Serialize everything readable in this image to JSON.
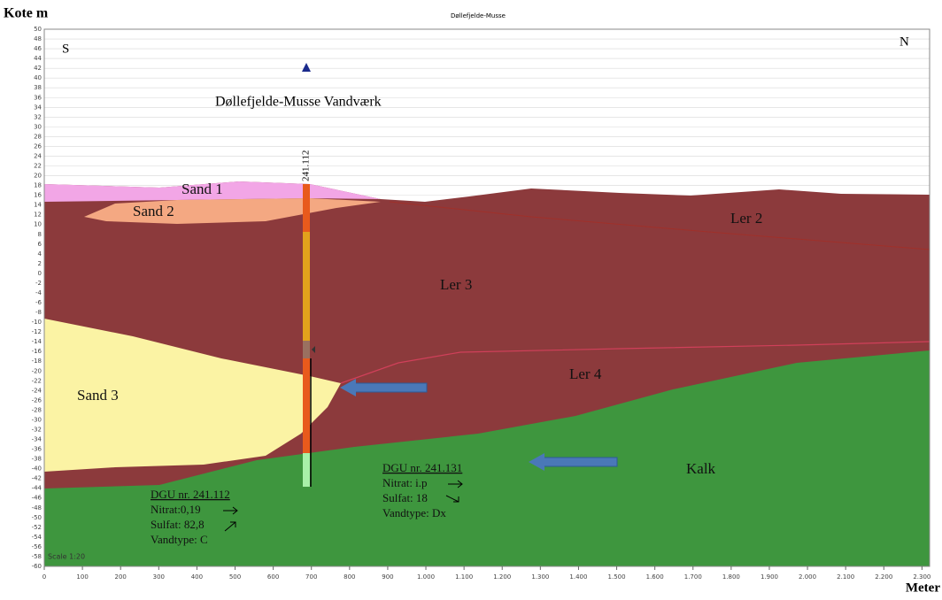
{
  "title": "Døllefjelde-Musse",
  "y_axis": {
    "label": "Kote m",
    "lim": [
      -60,
      50
    ],
    "ticks": [
      -60,
      -58,
      -56,
      -54,
      -52,
      -50,
      -48,
      -46,
      -44,
      -42,
      -40,
      -38,
      -36,
      -34,
      -32,
      -30,
      -28,
      -26,
      -24,
      -22,
      -20,
      -18,
      -16,
      -14,
      -12,
      -10,
      -8,
      -6,
      -4,
      -2,
      0,
      2,
      4,
      6,
      8,
      10,
      12,
      14,
      16,
      18,
      20,
      22,
      24,
      26,
      28,
      30,
      32,
      34,
      36,
      38,
      40,
      42,
      44,
      46,
      48,
      50
    ]
  },
  "x_axis": {
    "label": "Meter",
    "lim": [
      0,
      2320
    ],
    "ticks": [
      0,
      100,
      200,
      300,
      400,
      500,
      600,
      700,
      800,
      900,
      {
        "value": 1000,
        "label": "1.000"
      },
      {
        "value": 1100,
        "label": "1.100"
      },
      {
        "value": 1200,
        "label": "1.200"
      },
      {
        "value": 1300,
        "label": "1.300"
      },
      {
        "value": 1400,
        "label": "1.400"
      },
      {
        "value": 1500,
        "label": "1.500"
      },
      {
        "value": 1600,
        "label": "1.600"
      },
      {
        "value": 1700,
        "label": "1.700"
      },
      {
        "value": 1800,
        "label": "1.800"
      },
      {
        "value": 1900,
        "label": "1.900"
      },
      {
        "value": 2000,
        "label": "2.000"
      },
      {
        "value": 2100,
        "label": "2.100"
      },
      {
        "value": 2200,
        "label": "2.200"
      },
      {
        "value": 2300,
        "label": "2.300"
      }
    ]
  },
  "directions": {
    "left": "S",
    "right": "N"
  },
  "well_name": "Døllefjelde-Musse Vandværk",
  "borehole_label": "241.112",
  "layers": [
    "Sand 1",
    "Sand 2",
    "Ler 2",
    "Ler 3",
    "Sand 3",
    "Ler 4",
    "Kalk"
  ],
  "scale": "Scale 1:20",
  "samples": [
    {
      "id": "DGU nr. 241.112",
      "lines": [
        "Nitrat:0,19",
        "Sulfat: 82,8",
        "Vandtype: C"
      ]
    },
    {
      "id": "DGU nr. 241.131",
      "lines": [
        "Nitrat: i.p",
        "Sulfat: 18",
        "Vandtype: Dx"
      ]
    }
  ]
}
